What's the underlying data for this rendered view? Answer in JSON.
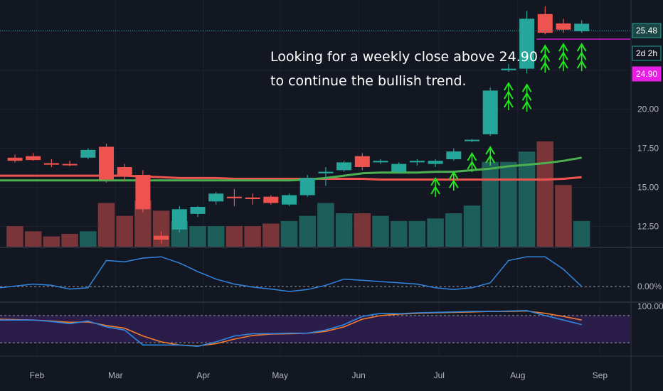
{
  "chart_data": {
    "type": "candlestick",
    "annotation": {
      "lines": [
        "Looking for a weekly close above 24.90",
        "to continue the bullish trend."
      ]
    },
    "price_axis": {
      "ticks": [
        "12.50",
        "15.00",
        "17.50",
        "20.00",
        "25.48",
        "2d 2h",
        "24.90"
      ],
      "ylim": [
        11.2,
        27.0
      ]
    },
    "price_tags": [
      {
        "label": "25.48",
        "value": 25.48,
        "color": "#26a69a",
        "kind": "last-price"
      },
      {
        "label": "2d 2h",
        "value": 24.9,
        "color": "#26a69a",
        "kind": "countdown"
      },
      {
        "label": "24.90",
        "value": 24.9,
        "color": "#e91ee5",
        "kind": "level"
      }
    ],
    "resistance_level": 24.9,
    "last_price": 25.48,
    "x_axis": {
      "months": [
        "Feb",
        "Mar",
        "Apr",
        "May",
        "Jun",
        "Jul",
        "Aug",
        "Sep"
      ],
      "month_week_index": [
        1.2,
        5.5,
        10.3,
        14.5,
        18.8,
        23.2,
        27.5,
        32.0
      ]
    },
    "candles": [
      {
        "o": 16.9,
        "h": 17.1,
        "l": 16.6,
        "c": 16.7
      },
      {
        "o": 17.0,
        "h": 17.2,
        "l": 16.7,
        "c": 16.75
      },
      {
        "o": 16.55,
        "h": 16.8,
        "l": 16.3,
        "c": 16.45
      },
      {
        "o": 16.5,
        "h": 16.7,
        "l": 16.35,
        "c": 16.45
      },
      {
        "o": 16.9,
        "h": 17.5,
        "l": 16.8,
        "c": 17.4
      },
      {
        "o": 17.6,
        "h": 17.8,
        "l": 15.3,
        "c": 15.5
      },
      {
        "o": 16.3,
        "h": 16.5,
        "l": 15.4,
        "c": 15.7
      },
      {
        "o": 15.8,
        "h": 16.1,
        "l": 13.4,
        "c": 13.6
      },
      {
        "o": 11.9,
        "h": 12.2,
        "l": 11.4,
        "c": 11.65
      },
      {
        "o": 12.3,
        "h": 13.8,
        "l": 12.1,
        "c": 13.6
      },
      {
        "o": 13.3,
        "h": 13.8,
        "l": 13.1,
        "c": 13.75
      },
      {
        "o": 14.1,
        "h": 14.7,
        "l": 13.9,
        "c": 14.6
      },
      {
        "o": 14.4,
        "h": 14.9,
        "l": 13.8,
        "c": 14.3
      },
      {
        "o": 14.35,
        "h": 14.6,
        "l": 13.9,
        "c": 14.25
      },
      {
        "o": 14.4,
        "h": 14.5,
        "l": 13.9,
        "c": 14.0
      },
      {
        "o": 13.9,
        "h": 14.6,
        "l": 13.8,
        "c": 14.5
      },
      {
        "o": 14.5,
        "h": 15.8,
        "l": 14.4,
        "c": 15.6
      },
      {
        "o": 15.9,
        "h": 16.3,
        "l": 15.1,
        "c": 16.0
      },
      {
        "o": 16.1,
        "h": 16.7,
        "l": 16.0,
        "c": 16.6
      },
      {
        "o": 17.0,
        "h": 17.2,
        "l": 16.1,
        "c": 16.3
      },
      {
        "o": 16.6,
        "h": 16.8,
        "l": 16.5,
        "c": 16.7
      },
      {
        "o": 16.0,
        "h": 16.6,
        "l": 15.9,
        "c": 16.5
      },
      {
        "o": 16.6,
        "h": 16.8,
        "l": 16.4,
        "c": 16.7
      },
      {
        "o": 16.5,
        "h": 16.8,
        "l": 16.3,
        "c": 16.7
      },
      {
        "o": 16.8,
        "h": 17.5,
        "l": 16.7,
        "c": 17.3
      },
      {
        "o": 18.0,
        "h": 18.1,
        "l": 17.9,
        "c": 18.05
      },
      {
        "o": 18.4,
        "h": 21.4,
        "l": 18.3,
        "c": 21.2
      },
      {
        "o": 22.5,
        "h": 22.9,
        "l": 22.4,
        "c": 22.6
      },
      {
        "o": 22.6,
        "h": 26.3,
        "l": 22.3,
        "c": 25.8
      },
      {
        "o": 26.1,
        "h": 26.6,
        "l": 24.8,
        "c": 24.9
      },
      {
        "o": 25.5,
        "h": 25.8,
        "l": 24.9,
        "c": 25.1
      },
      {
        "o": 25.0,
        "h": 25.7,
        "l": 24.9,
        "c": 25.48
      }
    ],
    "volume": {
      "ylim": [
        0,
        48
      ],
      "values": [
        4,
        3,
        2,
        2.5,
        3,
        8.5,
        6,
        9,
        7,
        5,
        4,
        4,
        4,
        4,
        4.5,
        5,
        6,
        8.5,
        6.5,
        6.5,
        6,
        5,
        5,
        5.5,
        6.5,
        8,
        16.5,
        16.5,
        18.5,
        20.5,
        12,
        5
      ]
    },
    "ma_green": [
      15.45,
      15.45,
      15.45,
      15.45,
      15.45,
      15.45,
      15.45,
      15.45,
      15.45,
      15.45,
      15.45,
      15.45,
      15.45,
      15.45,
      15.45,
      15.45,
      15.5,
      15.6,
      15.75,
      15.9,
      15.95,
      15.95,
      15.95,
      16.0,
      16.0,
      16.1,
      16.2,
      16.35,
      16.45,
      16.55,
      16.7,
      16.9
    ],
    "ma_red": [
      15.75,
      15.75,
      15.75,
      15.75,
      15.75,
      15.75,
      15.75,
      15.7,
      15.65,
      15.6,
      15.6,
      15.6,
      15.55,
      15.55,
      15.55,
      15.55,
      15.55,
      15.55,
      15.55,
      15.55,
      15.5,
      15.5,
      15.5,
      15.5,
      15.5,
      15.5,
      15.5,
      15.5,
      15.5,
      15.5,
      15.55,
      15.65
    ],
    "signal_arrows": [
      {
        "i": 23,
        "count": 2
      },
      {
        "i": 24,
        "count": 2
      },
      {
        "i": 25,
        "count": 2
      },
      {
        "i": 26,
        "count": 2
      },
      {
        "i": 27,
        "count": 3
      },
      {
        "i": 28,
        "count": 3
      },
      {
        "i": 29,
        "count": 3
      },
      {
        "i": 30,
        "count": 3
      },
      {
        "i": 31,
        "count": 3
      }
    ],
    "oscillator": {
      "zero_label": "0.00%",
      "ylim": [
        -0.6,
        1.55
      ],
      "values": [
        -0.05,
        0.1,
        0.05,
        -0.1,
        -0.05,
        1.05,
        1.0,
        1.15,
        1.2,
        0.95,
        0.6,
        0.3,
        0.1,
        -0.02,
        -0.1,
        -0.2,
        -0.12,
        0.05,
        0.3,
        0.25,
        0.2,
        0.15,
        0.1,
        -0.05,
        -0.12,
        -0.05,
        0.15,
        1.05,
        1.2,
        1.2,
        0.7,
        0.0
      ]
    },
    "stoch_rsi": {
      "top_label": "100.00",
      "ylim": [
        -8,
        108
      ],
      "upper_band": 80,
      "lower_band": 20,
      "k": [
        70,
        70,
        67,
        62,
        68,
        55,
        48,
        15,
        15,
        15,
        12,
        22,
        35,
        40,
        40,
        41,
        41,
        48,
        60,
        78,
        85,
        84,
        86,
        87,
        88,
        89,
        89,
        90,
        91,
        80,
        70,
        60
      ],
      "d": [
        72,
        70,
        68,
        65,
        66,
        58,
        52,
        35,
        22,
        15,
        13,
        18,
        28,
        36,
        39,
        40,
        41,
        45,
        55,
        72,
        80,
        83,
        85,
        86,
        87,
        88,
        89,
        89,
        90,
        85,
        78,
        70
      ]
    }
  }
}
